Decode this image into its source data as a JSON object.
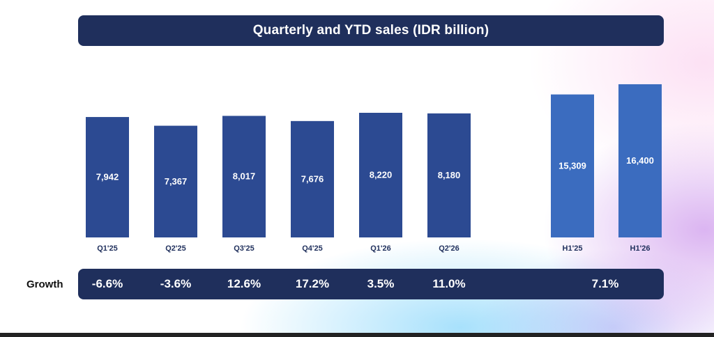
{
  "title": "Quarterly and YTD sales (IDR billion)",
  "colors": {
    "quarter_bar": "#2c4a92",
    "ytd_bar": "#3b6cbf",
    "panel": "#1f2f5c"
  },
  "chart_data": {
    "type": "bar",
    "title": "Quarterly and YTD sales (IDR billion)",
    "categories": [
      "Q1'25",
      "Q2'25",
      "Q3'25",
      "Q4'25",
      "Q1'26",
      "Q2'26",
      "H1'25",
      "H1'26"
    ],
    "values": [
      7942,
      7367,
      8017,
      7676,
      8220,
      8180,
      15309,
      16400
    ],
    "value_labels": [
      "7,942",
      "7,367",
      "8,017",
      "7,676",
      "8,220",
      "8,180",
      "15,309",
      "16,400"
    ],
    "groups": [
      "quarter",
      "quarter",
      "quarter",
      "quarter",
      "quarter",
      "quarter",
      "ytd",
      "ytd"
    ],
    "grid": false,
    "legend": "none"
  },
  "growth": {
    "label": "Growth",
    "values": [
      "-6.6%",
      "-3.6%",
      "12.6%",
      "17.2%",
      "3.5%",
      "11.0%",
      "7.1%"
    ]
  }
}
